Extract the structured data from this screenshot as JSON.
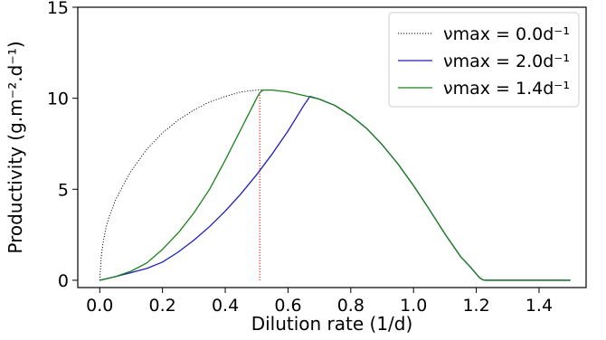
{
  "chart_data": {
    "type": "line",
    "xlabel": "Dilution rate (1/d)",
    "ylabel": "Productivity (g.m⁻².d⁻¹)",
    "xlim": [
      -0.07,
      1.55
    ],
    "ylim": [
      -0.4,
      15
    ],
    "xticks": [
      0.0,
      0.2,
      0.4,
      0.6,
      0.8,
      1.0,
      1.2,
      1.4
    ],
    "xtick_labels": [
      "0.0",
      "0.2",
      "0.4",
      "0.6",
      "0.8",
      "1.0",
      "1.2",
      "1.4"
    ],
    "yticks": [
      0,
      5,
      10,
      15
    ],
    "ytick_labels": [
      "0",
      "5",
      "10",
      "15"
    ],
    "grid": false,
    "legend_position": "top-right",
    "series": [
      {
        "name": "νmax = 0.0d⁻¹",
        "color": "#000000",
        "style": "dotted",
        "x": [
          0.0,
          0.005,
          0.01,
          0.02,
          0.03,
          0.05,
          0.08,
          0.1,
          0.15,
          0.2,
          0.25,
          0.3,
          0.35,
          0.4,
          0.45,
          0.5,
          0.52
        ],
        "y": [
          0.0,
          1.3,
          2.0,
          2.9,
          3.5,
          4.4,
          5.4,
          6.0,
          7.2,
          8.1,
          8.8,
          9.35,
          9.8,
          10.1,
          10.35,
          10.45,
          10.45
        ]
      },
      {
        "name": "νmax = 2.0d⁻¹",
        "color": "#1f1fbf",
        "style": "solid",
        "x": [
          0.0,
          0.05,
          0.1,
          0.15,
          0.2,
          0.25,
          0.3,
          0.35,
          0.4,
          0.45,
          0.5,
          0.55,
          0.6,
          0.65,
          0.67,
          0.7,
          0.75,
          0.8,
          0.85,
          0.9,
          0.95,
          1.0,
          1.05,
          1.1,
          1.15,
          1.18,
          1.2,
          1.21,
          1.22,
          1.23,
          1.25,
          1.3,
          1.4,
          1.5
        ],
        "y": [
          0.0,
          0.2,
          0.42,
          0.65,
          1.0,
          1.55,
          2.2,
          2.95,
          3.8,
          4.75,
          5.8,
          6.95,
          8.2,
          9.6,
          10.1,
          9.95,
          9.6,
          9.05,
          8.35,
          7.45,
          6.4,
          5.2,
          3.9,
          2.55,
          1.3,
          0.75,
          0.35,
          0.15,
          0.03,
          0.0,
          0.0,
          0.0,
          0.0,
          0.0
        ]
      },
      {
        "name": "νmax = 1.4d⁻¹",
        "color": "#1a801a",
        "style": "solid",
        "x": [
          0.0,
          0.05,
          0.1,
          0.15,
          0.2,
          0.25,
          0.3,
          0.35,
          0.4,
          0.45,
          0.5,
          0.51,
          0.52,
          0.55,
          0.6,
          0.65,
          0.7,
          0.75,
          0.8,
          0.85,
          0.9,
          0.95,
          1.0,
          1.05,
          1.1,
          1.15,
          1.18,
          1.2,
          1.21,
          1.22,
          1.23,
          1.25,
          1.3,
          1.4,
          1.5
        ],
        "y": [
          0.0,
          0.2,
          0.5,
          0.95,
          1.7,
          2.6,
          3.7,
          5.0,
          6.6,
          8.3,
          10.0,
          10.3,
          10.45,
          10.45,
          10.35,
          10.15,
          9.95,
          9.6,
          9.05,
          8.35,
          7.45,
          6.4,
          5.2,
          3.9,
          2.55,
          1.3,
          0.75,
          0.35,
          0.15,
          0.03,
          0.0,
          0.0,
          0.0,
          0.0,
          0.0
        ]
      }
    ],
    "annotations": [
      {
        "type": "vertical_line",
        "x": 0.51,
        "y_from": 0.0,
        "y_to": 10.4,
        "color": "#ff0000",
        "style": "dotted"
      }
    ]
  }
}
